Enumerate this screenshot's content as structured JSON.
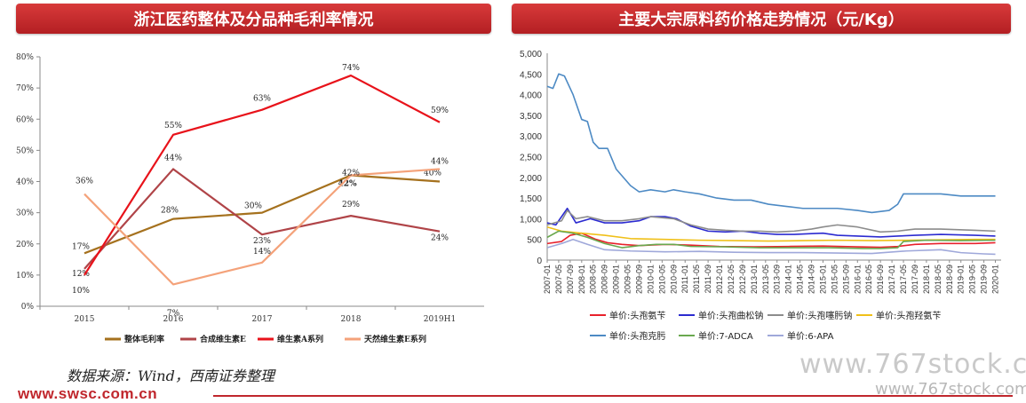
{
  "banners": {
    "left": "浙江医药整体及分品种毛利率情况",
    "right": "主要大宗原料药价格走势情况（元/Kg）"
  },
  "footer": {
    "source": "数据来源：Wind，西南证券整理",
    "site": "www.swsc.com.cn"
  },
  "watermark": {
    "large": "www.767stock.co",
    "small": "www.767stock.com"
  },
  "chart_data": [
    {
      "type": "line",
      "categories": [
        "2015",
        "2016",
        "2017",
        "2018",
        "2019H1"
      ],
      "ylim": [
        0,
        80
      ],
      "yticks": [
        "0%",
        "10%",
        "20%",
        "30%",
        "40%",
        "50%",
        "60%",
        "70%",
        "80%"
      ],
      "grid": false,
      "legend_position": "bottom",
      "series": [
        {
          "name": "整体毛利率",
          "color": "#a5711e",
          "values": [
            17,
            28,
            30,
            42,
            40
          ],
          "labels": [
            "17%",
            "28%",
            "30%",
            "42%",
            "40%"
          ]
        },
        {
          "name": "合成维生素E",
          "color": "#b04448",
          "values": [
            12,
            44,
            23,
            29,
            24
          ],
          "labels": [
            "12%",
            "44%",
            "23%",
            "29%",
            "24%"
          ]
        },
        {
          "name": "维生素A系列",
          "color": "#e8121a",
          "values": [
            10,
            55,
            63,
            74,
            59
          ],
          "labels": [
            "10%",
            "55%",
            "63%",
            "74%",
            "59%"
          ]
        },
        {
          "name": "天然维生素E系列",
          "color": "#f4a27a",
          "values": [
            36,
            7,
            14,
            42,
            44
          ],
          "labels": [
            "36%",
            "7%",
            "14%",
            "42%",
            "44%"
          ]
        }
      ]
    },
    {
      "type": "line",
      "ylim": [
        0,
        5000
      ],
      "yticks": [
        "0",
        "500",
        "1,000",
        "1,500",
        "2,000",
        "2,500",
        "3,000",
        "3,500",
        "4,000",
        "4,500",
        "5,000"
      ],
      "xticks": [
        "2007-01",
        "2007-05",
        "2007-09",
        "2008-01",
        "2008-05",
        "2008-09",
        "2009-01",
        "2009-05",
        "2009-09",
        "2010-01",
        "2010-05",
        "2010-09",
        "2011-01",
        "2011-05",
        "2011-09",
        "2012-01",
        "2012-05",
        "2012-09",
        "2013-01",
        "2013-05",
        "2013-09",
        "2014-01",
        "2014-05",
        "2014-09",
        "2015-01",
        "2015-05",
        "2015-09",
        "2016-01",
        "2016-05",
        "2016-09",
        "2017-01",
        "2017-05",
        "2017-09",
        "2018-01",
        "2018-05",
        "2018-09",
        "2019-01",
        "2019-05",
        "2019-09",
        "2020-01"
      ],
      "grid": false,
      "legend_position": "bottom",
      "series": [
        {
          "name": "单价:头孢氨苄",
          "color": "#e8212b",
          "points": [
            [
              "2007-01",
              400
            ],
            [
              "2007-06",
              450
            ],
            [
              "2007-09",
              600
            ],
            [
              "2008-01",
              650
            ],
            [
              "2008-06",
              500
            ],
            [
              "2008-10",
              420
            ],
            [
              "2009-03",
              380
            ],
            [
              "2009-09",
              350
            ],
            [
              "2010-06",
              380
            ],
            [
              "2011-03",
              360
            ],
            [
              "2012-01",
              330
            ],
            [
              "2013-01",
              320
            ],
            [
              "2014-01",
              330
            ],
            [
              "2015-01",
              340
            ],
            [
              "2016-01",
              320
            ],
            [
              "2016-09",
              310
            ],
            [
              "2017-03",
              330
            ],
            [
              "2017-09",
              380
            ],
            [
              "2018-06",
              400
            ],
            [
              "2019-06",
              400
            ],
            [
              "2020-01",
              420
            ]
          ]
        },
        {
          "name": "单价:头孢曲松钠",
          "color": "#2c2bd0",
          "points": [
            [
              "2007-01",
              900
            ],
            [
              "2007-04",
              850
            ],
            [
              "2007-08",
              1250
            ],
            [
              "2007-11",
              900
            ],
            [
              "2008-04",
              1000
            ],
            [
              "2008-09",
              900
            ],
            [
              "2009-03",
              900
            ],
            [
              "2009-09",
              950
            ],
            [
              "2010-01",
              1050
            ],
            [
              "2010-06",
              1050
            ],
            [
              "2010-10",
              1000
            ],
            [
              "2011-03",
              820
            ],
            [
              "2011-09",
              700
            ],
            [
              "2012-03",
              680
            ],
            [
              "2012-09",
              700
            ],
            [
              "2013-03",
              650
            ],
            [
              "2013-09",
              620
            ],
            [
              "2014-03",
              620
            ],
            [
              "2014-09",
              640
            ],
            [
              "2015-01",
              650
            ],
            [
              "2015-06",
              600
            ],
            [
              "2016-01",
              580
            ],
            [
              "2016-09",
              560
            ],
            [
              "2017-03",
              580
            ],
            [
              "2017-09",
              600
            ],
            [
              "2018-06",
              620
            ],
            [
              "2019-06",
              600
            ],
            [
              "2020-01",
              580
            ]
          ]
        },
        {
          "name": "单价:头孢噻肟钠",
          "color": "#8c8c8c",
          "points": [
            [
              "2007-01",
              850
            ],
            [
              "2007-06",
              950
            ],
            [
              "2007-08",
              1200
            ],
            [
              "2007-11",
              1000
            ],
            [
              "2008-03",
              1050
            ],
            [
              "2008-09",
              950
            ],
            [
              "2009-03",
              950
            ],
            [
              "2009-09",
              1000
            ],
            [
              "2010-01",
              1050
            ],
            [
              "2010-09",
              1000
            ],
            [
              "2011-03",
              850
            ],
            [
              "2011-09",
              750
            ],
            [
              "2012-03",
              720
            ],
            [
              "2012-09",
              700
            ],
            [
              "2013-03",
              700
            ],
            [
              "2013-09",
              680
            ],
            [
              "2014-03",
              700
            ],
            [
              "2014-09",
              750
            ],
            [
              "2015-01",
              800
            ],
            [
              "2015-06",
              850
            ],
            [
              "2016-01",
              800
            ],
            [
              "2016-09",
              680
            ],
            [
              "2017-03",
              700
            ],
            [
              "2017-09",
              750
            ],
            [
              "2018-06",
              750
            ],
            [
              "2019-06",
              720
            ],
            [
              "2020-01",
              700
            ]
          ]
        },
        {
          "name": "单价:头孢羟氨苄",
          "color": "#f0c019",
          "points": [
            [
              "2007-01",
              800
            ],
            [
              "2007-06",
              700
            ],
            [
              "2008-01",
              650
            ],
            [
              "2008-09",
              600
            ],
            [
              "2009-06",
              520
            ],
            [
              "2010-06",
              500
            ],
            [
              "2011-06",
              480
            ],
            [
              "2012-06",
              470
            ],
            [
              "2013-06",
              460
            ],
            [
              "2014-06",
              470
            ],
            [
              "2015-06",
              480
            ],
            [
              "2016-06",
              470
            ],
            [
              "2017-06",
              480
            ],
            [
              "2018-06",
              490
            ],
            [
              "2019-06",
              500
            ],
            [
              "2020-01",
              500
            ]
          ]
        },
        {
          "name": "单价:头孢克肟",
          "color": "#4d8ac4",
          "points": [
            [
              "2007-01",
              4200
            ],
            [
              "2007-03",
              4150
            ],
            [
              "2007-05",
              4500
            ],
            [
              "2007-07",
              4450
            ],
            [
              "2007-10",
              4000
            ],
            [
              "2008-01",
              3400
            ],
            [
              "2008-03",
              3350
            ],
            [
              "2008-05",
              2850
            ],
            [
              "2008-07",
              2700
            ],
            [
              "2008-10",
              2700
            ],
            [
              "2009-01",
              2200
            ],
            [
              "2009-06",
              1800
            ],
            [
              "2009-09",
              1650
            ],
            [
              "2010-01",
              1700
            ],
            [
              "2010-06",
              1650
            ],
            [
              "2010-09",
              1700
            ],
            [
              "2011-01",
              1650
            ],
            [
              "2011-06",
              1600
            ],
            [
              "2011-12",
              1500
            ],
            [
              "2012-06",
              1450
            ],
            [
              "2012-12",
              1450
            ],
            [
              "2013-06",
              1350
            ],
            [
              "2013-12",
              1300
            ],
            [
              "2014-06",
              1250
            ],
            [
              "2015-01",
              1250
            ],
            [
              "2015-06",
              1250
            ],
            [
              "2016-01",
              1200
            ],
            [
              "2016-06",
              1150
            ],
            [
              "2016-12",
              1200
            ],
            [
              "2017-03",
              1350
            ],
            [
              "2017-05",
              1600
            ],
            [
              "2018-06",
              1600
            ],
            [
              "2019-01",
              1550
            ],
            [
              "2019-09",
              1550
            ],
            [
              "2020-01",
              1550
            ]
          ]
        },
        {
          "name": "单价:7-ADCA",
          "color": "#6aa84f",
          "points": [
            [
              "2007-01",
              550
            ],
            [
              "2007-05",
              700
            ],
            [
              "2007-10",
              650
            ],
            [
              "2008-03",
              550
            ],
            [
              "2008-09",
              400
            ],
            [
              "2009-03",
              300
            ],
            [
              "2009-09",
              350
            ],
            [
              "2010-03",
              380
            ],
            [
              "2010-09",
              380
            ],
            [
              "2011-03",
              330
            ],
            [
              "2012-03",
              320
            ],
            [
              "2013-03",
              300
            ],
            [
              "2014-03",
              300
            ],
            [
              "2015-03",
              300
            ],
            [
              "2016-03",
              280
            ],
            [
              "2016-09",
              280
            ],
            [
              "2017-03",
              300
            ],
            [
              "2017-05",
              450
            ],
            [
              "2018-01",
              480
            ],
            [
              "2019-01",
              470
            ],
            [
              "2020-01",
              480
            ]
          ]
        },
        {
          "name": "单价:6-APA",
          "color": "#9fa8da",
          "points": [
            [
              "2007-01",
              300
            ],
            [
              "2007-06",
              400
            ],
            [
              "2007-10",
              500
            ],
            [
              "2008-03",
              380
            ],
            [
              "2008-09",
              250
            ],
            [
              "2009-06",
              220
            ],
            [
              "2010-06",
              200
            ],
            [
              "2011-06",
              210
            ],
            [
              "2012-06",
              190
            ],
            [
              "2013-06",
              180
            ],
            [
              "2014-06",
              180
            ],
            [
              "2015-06",
              170
            ],
            [
              "2016-06",
              160
            ],
            [
              "2017-06",
              220
            ],
            [
              "2018-06",
              250
            ],
            [
              "2019-01",
              180
            ],
            [
              "2019-09",
              150
            ],
            [
              "2020-01",
              140
            ]
          ]
        }
      ]
    }
  ]
}
